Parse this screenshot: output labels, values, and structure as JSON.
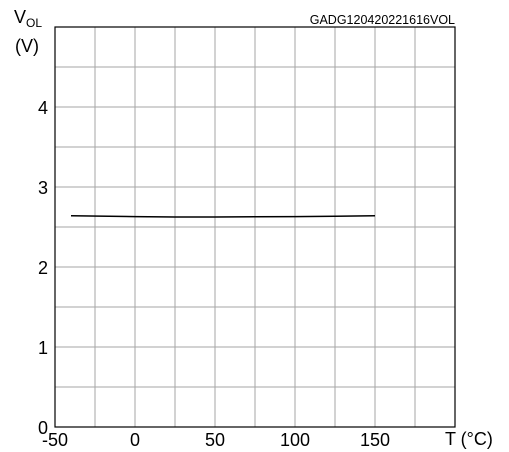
{
  "chart_data": {
    "type": "line",
    "title": "",
    "chart_id": "GADG120420221616VOL",
    "ylabel_main": "V",
    "ylabel_sub": "OL",
    "ylabel_unit": "(V)",
    "xlabel": "T (°C)",
    "xlim": [
      -50,
      200
    ],
    "ylim": [
      0,
      5
    ],
    "x_ticks": [
      -50,
      0,
      50,
      100,
      150
    ],
    "x_tick_labels": [
      "-50",
      "0",
      "50",
      "100",
      "150"
    ],
    "y_ticks": [
      0,
      1,
      2,
      3,
      4
    ],
    "y_tick_labels": [
      "0",
      "1",
      "2",
      "3",
      "4"
    ],
    "grid": true,
    "series": [
      {
        "x": [
          -40,
          0,
          25,
          50,
          100,
          125,
          150
        ],
        "y": [
          2.64,
          2.63,
          2.625,
          2.625,
          2.63,
          2.635,
          2.64
        ]
      }
    ]
  }
}
